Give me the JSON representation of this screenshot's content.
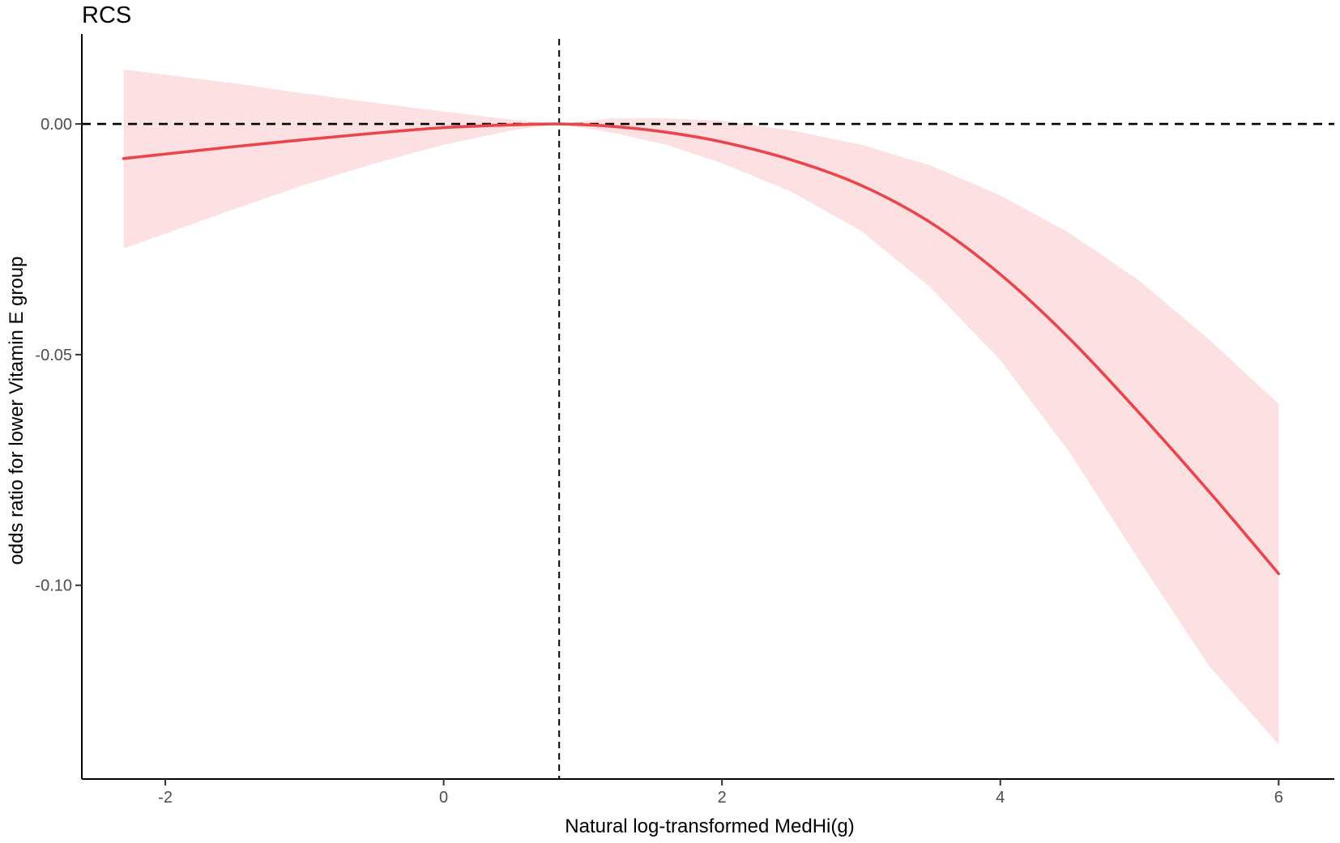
{
  "chart_data": {
    "type": "line",
    "title": "RCS",
    "xlabel": "Natural log-transformed MedHi(g)",
    "ylabel": "odds ratio for lower Vitamin E group",
    "xlim": [
      -2.6,
      6.4
    ],
    "ylim": [
      -0.142,
      0.0195
    ],
    "x_ticks": [
      -2,
      0,
      2,
      4,
      6
    ],
    "x_tick_labels": [
      "-2",
      "0",
      "2",
      "4",
      "6"
    ],
    "y_ticks": [
      0.0,
      -0.05,
      -0.1
    ],
    "y_tick_labels": [
      "0.00",
      "-0.05",
      "-0.10"
    ],
    "grid": false,
    "legend": "none",
    "reference_lines": {
      "horizontal_y": 0.0,
      "vertical_x": 0.83
    },
    "colors": {
      "line": "#e8464a",
      "band": "#fde0e1",
      "reference": "#000000",
      "axis": "#000000",
      "tick_label": "#4d4d4d"
    },
    "series": [
      {
        "x": [
          -2.3,
          -1.5,
          -1.0,
          -0.5,
          0.0,
          0.5,
          0.83,
          1.2,
          1.6,
          2.0,
          2.5,
          3.0,
          3.5,
          4.0,
          4.5,
          5.0,
          5.5,
          6.0
        ],
        "y": [
          -0.0075,
          -0.0049,
          -0.0034,
          -0.002,
          -0.0008,
          -0.0002,
          0.0,
          -0.0005,
          -0.0018,
          -0.0039,
          -0.0078,
          -0.0133,
          -0.0214,
          -0.0326,
          -0.0466,
          -0.0627,
          -0.0797,
          -0.0975
        ],
        "lower": [
          -0.027,
          -0.0184,
          -0.0132,
          -0.0086,
          -0.0045,
          -0.0013,
          0.0,
          -0.0018,
          -0.0045,
          -0.0085,
          -0.0147,
          -0.0232,
          -0.0355,
          -0.0512,
          -0.0713,
          -0.0947,
          -0.1175,
          -0.1345
        ],
        "upper": [
          0.0118,
          0.0088,
          0.0066,
          0.0046,
          0.0027,
          0.0009,
          0.0,
          0.0012,
          0.0012,
          0.0007,
          -0.0014,
          -0.0045,
          -0.009,
          -0.0155,
          -0.0237,
          -0.034,
          -0.0467,
          -0.0607
        ]
      }
    ]
  }
}
